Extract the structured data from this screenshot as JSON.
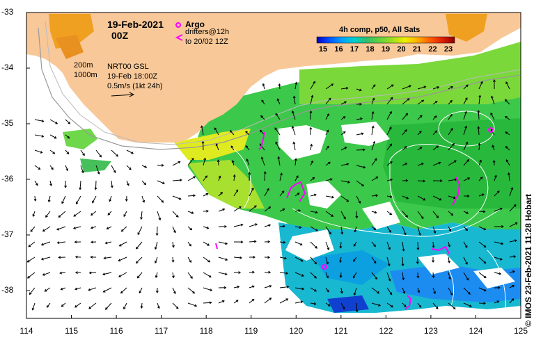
{
  "map": {
    "title_date": "19-Feb-2021",
    "title_time": "00Z",
    "argo_label": "Argo",
    "drifters_label_1": "drifters@12h",
    "drifters_label_2": "to 20/02 12Z",
    "depth_label_1": "200m",
    "depth_label_2": "1000m",
    "gsl_label_1": "NRT00 GSL",
    "gsl_label_2": "19-Feb 18:00Z",
    "vector_scale_label": "0.5m/s (1kt 24h)",
    "colorbar_title": "4h comp, p50, All Sats",
    "colorbar_ticks": [
      "15",
      "16",
      "17",
      "18",
      "19",
      "20",
      "21",
      "22",
      "23"
    ],
    "credit": "© IMOS 23-Feb-2021 11:28 Hobart",
    "x_ticks": [
      "114",
      "115",
      "116",
      "117",
      "118",
      "119",
      "120",
      "121",
      "122",
      "123",
      "124",
      "125"
    ],
    "y_ticks": [
      "-33",
      "-34",
      "-35",
      "-36",
      "-37",
      "-38"
    ],
    "lon_range": [
      114,
      125
    ],
    "lat_range": [
      -38.5,
      -33
    ],
    "colors": {
      "land": "#f8c898",
      "argo": "#ff00ff",
      "drifter": "#ff00ff",
      "contour": "#ffffff",
      "bathymetry": "#999999",
      "colorbar": [
        "#0000c8",
        "#0050ff",
        "#00a0ff",
        "#00d0d0",
        "#30c070",
        "#60d040",
        "#a0e020",
        "#f0f000",
        "#ffb000",
        "#ff6000",
        "#e02000",
        "#900000"
      ]
    }
  }
}
